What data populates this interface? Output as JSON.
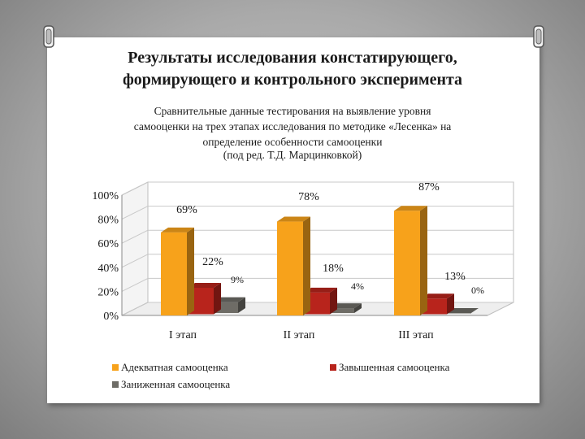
{
  "slide": {
    "title_line1": "Результаты исследования констатирующего,",
    "title_line2": "формирующего и контрольного эксперимента",
    "subtitle_line1": "Сравнительные данные тестирования на выявление уровня",
    "subtitle_line2": "самооценки на трех этапах исследования по методике «Лесенка» на",
    "subtitle_line3": "определение особенности самооценки",
    "editor": "(под ред. Т.Д. Марцинковкой)"
  },
  "chart_data": {
    "type": "bar",
    "title": "",
    "xlabel": "",
    "ylabel": "",
    "ylim": [
      0,
      100
    ],
    "yticks": [
      "0%",
      "20%",
      "40%",
      "60%",
      "80%",
      "100%"
    ],
    "categories": [
      "I этап",
      "II этап",
      "III этап"
    ],
    "series": [
      {
        "name": "Адекватная самооценка",
        "values": [
          69,
          78,
          87
        ],
        "labels": [
          "69%",
          "78%",
          "87%"
        ],
        "color": "#f7a21b"
      },
      {
        "name": "Завышенная самооценка",
        "values": [
          22,
          18,
          13
        ],
        "labels": [
          "22%",
          "18%",
          "13%"
        ],
        "color": "#b8241c"
      },
      {
        "name": "Заниженная самооценка",
        "values": [
          9,
          4,
          0
        ],
        "labels": [
          "9%",
          "4%",
          "0%"
        ],
        "color": "#6e6c66"
      }
    ],
    "legend_position": "bottom",
    "style": "3d"
  }
}
